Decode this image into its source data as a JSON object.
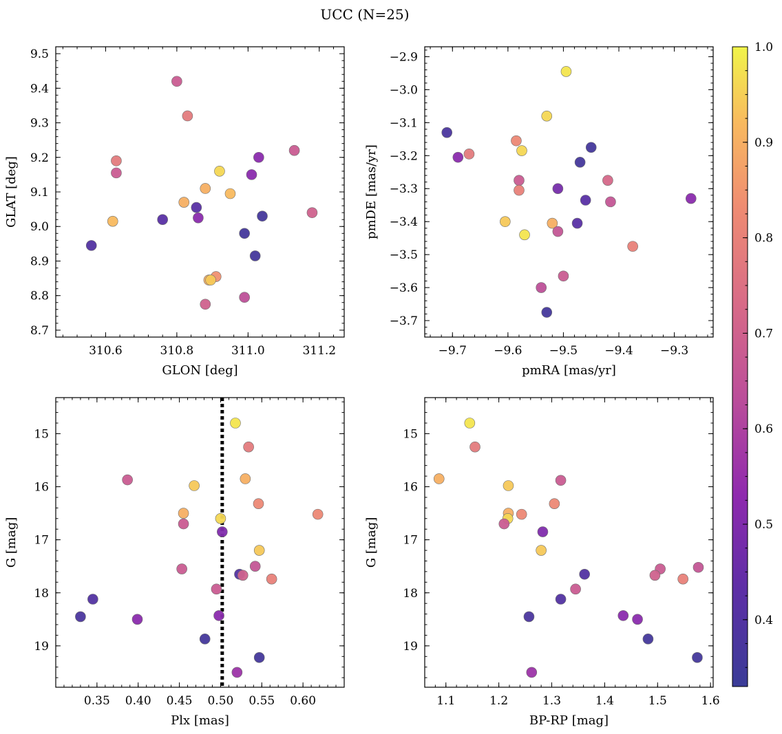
{
  "figure": {
    "suptitle": "UCC (N=25)"
  },
  "colorbar": {
    "colormap": "plasma",
    "range": [
      0.33,
      1.0
    ],
    "ticks": [
      "0.4",
      "0.5",
      "0.6",
      "0.7",
      "0.8",
      "0.9",
      "1.0"
    ]
  },
  "chart_data": [
    {
      "type": "scatter",
      "panel": "top-left",
      "xlabel": "GLON [deg]",
      "ylabel": "GLAT [deg]",
      "xlim": [
        310.46,
        311.27
      ],
      "ylim": [
        8.68,
        9.52
      ],
      "x_ticks": [
        "310.6",
        "310.8",
        "311.0",
        "311.2"
      ],
      "y_ticks": [
        "8.7",
        "8.8",
        "8.9",
        "9.0",
        "9.1",
        "9.2",
        "9.3",
        "9.4",
        "9.5"
      ],
      "points": [
        {
          "x": 310.8,
          "y": 9.42,
          "c": 0.68
        },
        {
          "x": 310.83,
          "y": 9.32,
          "c": 0.78
        },
        {
          "x": 310.63,
          "y": 9.19,
          "c": 0.78
        },
        {
          "x": 310.63,
          "y": 9.155,
          "c": 0.68
        },
        {
          "x": 310.92,
          "y": 9.16,
          "c": 0.96
        },
        {
          "x": 311.03,
          "y": 9.2,
          "c": 0.52
        },
        {
          "x": 311.13,
          "y": 9.22,
          "c": 0.68
        },
        {
          "x": 311.01,
          "y": 9.15,
          "c": 0.52
        },
        {
          "x": 310.88,
          "y": 9.11,
          "c": 0.9
        },
        {
          "x": 310.95,
          "y": 9.095,
          "c": 0.92
        },
        {
          "x": 310.82,
          "y": 9.07,
          "c": 0.9
        },
        {
          "x": 310.855,
          "y": 9.055,
          "c": 0.42
        },
        {
          "x": 311.18,
          "y": 9.04,
          "c": 0.7
        },
        {
          "x": 310.62,
          "y": 9.015,
          "c": 0.92
        },
        {
          "x": 310.76,
          "y": 9.02,
          "c": 0.42
        },
        {
          "x": 310.86,
          "y": 9.025,
          "c": 0.52
        },
        {
          "x": 311.04,
          "y": 9.03,
          "c": 0.36
        },
        {
          "x": 310.99,
          "y": 8.98,
          "c": 0.36
        },
        {
          "x": 310.56,
          "y": 8.945,
          "c": 0.4
        },
        {
          "x": 311.02,
          "y": 8.915,
          "c": 0.36
        },
        {
          "x": 310.91,
          "y": 8.855,
          "c": 0.84
        },
        {
          "x": 310.89,
          "y": 8.845,
          "c": 0.9
        },
        {
          "x": 310.895,
          "y": 8.845,
          "c": 0.94
        },
        {
          "x": 310.88,
          "y": 8.775,
          "c": 0.7
        },
        {
          "x": 310.99,
          "y": 8.795,
          "c": 0.64
        }
      ]
    },
    {
      "type": "scatter",
      "panel": "top-right",
      "xlabel": "pmRA [mas/yr]",
      "ylabel": "pmDE [mas/yr]",
      "xlim": [
        -9.75,
        -9.23
      ],
      "ylim": [
        -3.75,
        -2.87
      ],
      "x_ticks": [
        "−9.7",
        "−9.6",
        "−9.5",
        "−9.4",
        "−9.3"
      ],
      "y_ticks": [
        "−2.9",
        "−3.0",
        "−3.1",
        "−3.2",
        "−3.3",
        "−3.4",
        "−3.5",
        "−3.6",
        "−3.7"
      ],
      "points": [
        {
          "x": -9.495,
          "y": -2.945,
          "c": 0.98
        },
        {
          "x": -9.53,
          "y": -3.08,
          "c": 0.96
        },
        {
          "x": -9.71,
          "y": -3.13,
          "c": 0.38
        },
        {
          "x": -9.585,
          "y": -3.155,
          "c": 0.82
        },
        {
          "x": -9.575,
          "y": -3.185,
          "c": 0.96
        },
        {
          "x": -9.45,
          "y": -3.175,
          "c": 0.36
        },
        {
          "x": -9.67,
          "y": -3.195,
          "c": 0.78
        },
        {
          "x": -9.69,
          "y": -3.205,
          "c": 0.52
        },
        {
          "x": -9.47,
          "y": -3.22,
          "c": 0.36
        },
        {
          "x": -9.58,
          "y": -3.275,
          "c": 0.68
        },
        {
          "x": -9.42,
          "y": -3.275,
          "c": 0.72
        },
        {
          "x": -9.51,
          "y": -3.3,
          "c": 0.48
        },
        {
          "x": -9.58,
          "y": -3.305,
          "c": 0.8
        },
        {
          "x": -9.46,
          "y": -3.335,
          "c": 0.42
        },
        {
          "x": -9.415,
          "y": -3.34,
          "c": 0.66
        },
        {
          "x": -9.27,
          "y": -3.33,
          "c": 0.52
        },
        {
          "x": -9.605,
          "y": -3.4,
          "c": 0.94
        },
        {
          "x": -9.52,
          "y": -3.405,
          "c": 0.9
        },
        {
          "x": -9.475,
          "y": -3.405,
          "c": 0.42
        },
        {
          "x": -9.51,
          "y": -3.43,
          "c": 0.66
        },
        {
          "x": -9.57,
          "y": -3.44,
          "c": 0.98
        },
        {
          "x": -9.375,
          "y": -3.475,
          "c": 0.8
        },
        {
          "x": -9.5,
          "y": -3.565,
          "c": 0.68
        },
        {
          "x": -9.54,
          "y": -3.6,
          "c": 0.64
        },
        {
          "x": -9.53,
          "y": -3.675,
          "c": 0.36
        }
      ]
    },
    {
      "type": "scatter",
      "panel": "bottom-left",
      "xlabel": "Plx [mas]",
      "ylabel": "G [mag]",
      "xlim": [
        0.3,
        0.65
      ],
      "ylim": [
        19.78,
        14.32
      ],
      "y_inverted": true,
      "x_ticks": [
        "0.35",
        "0.40",
        "0.45",
        "0.50",
        "0.55",
        "0.60"
      ],
      "y_ticks": [
        "15",
        "16",
        "17",
        "18",
        "19"
      ],
      "vline": {
        "x": 0.502,
        "style": "dotted",
        "color": "#000000"
      },
      "points": [
        {
          "x": 0.518,
          "y": 14.8,
          "c": 0.98
        },
        {
          "x": 0.534,
          "y": 15.25,
          "c": 0.78
        },
        {
          "x": 0.387,
          "y": 15.87,
          "c": 0.68
        },
        {
          "x": 0.53,
          "y": 15.85,
          "c": 0.9
        },
        {
          "x": 0.468,
          "y": 15.98,
          "c": 0.94
        },
        {
          "x": 0.546,
          "y": 16.32,
          "c": 0.82
        },
        {
          "x": 0.455,
          "y": 16.5,
          "c": 0.9
        },
        {
          "x": 0.618,
          "y": 16.52,
          "c": 0.82
        },
        {
          "x": 0.5,
          "y": 16.6,
          "c": 0.96
        },
        {
          "x": 0.455,
          "y": 16.7,
          "c": 0.68
        },
        {
          "x": 0.502,
          "y": 16.85,
          "c": 0.5
        },
        {
          "x": 0.547,
          "y": 17.2,
          "c": 0.94
        },
        {
          "x": 0.453,
          "y": 17.55,
          "c": 0.68
        },
        {
          "x": 0.542,
          "y": 17.5,
          "c": 0.66
        },
        {
          "x": 0.523,
          "y": 17.65,
          "c": 0.4
        },
        {
          "x": 0.527,
          "y": 17.67,
          "c": 0.7
        },
        {
          "x": 0.562,
          "y": 17.74,
          "c": 0.8
        },
        {
          "x": 0.495,
          "y": 17.93,
          "c": 0.68
        },
        {
          "x": 0.345,
          "y": 18.12,
          "c": 0.4
        },
        {
          "x": 0.498,
          "y": 18.43,
          "c": 0.52
        },
        {
          "x": 0.33,
          "y": 18.45,
          "c": 0.38
        },
        {
          "x": 0.399,
          "y": 18.5,
          "c": 0.52
        },
        {
          "x": 0.481,
          "y": 18.87,
          "c": 0.36
        },
        {
          "x": 0.547,
          "y": 19.22,
          "c": 0.36
        },
        {
          "x": 0.52,
          "y": 19.5,
          "c": 0.56
        }
      ]
    },
    {
      "type": "scatter",
      "panel": "bottom-right",
      "xlabel": "BP-RP [mag]",
      "ylabel": "G [mag]",
      "xlim": [
        1.06,
        1.605
      ],
      "ylim": [
        19.78,
        14.32
      ],
      "y_inverted": true,
      "x_ticks": [
        "1.1",
        "1.2",
        "1.3",
        "1.4",
        "1.5",
        "1.6"
      ],
      "y_ticks": [
        "15",
        "16",
        "17",
        "18",
        "19"
      ],
      "points": [
        {
          "x": 1.145,
          "y": 14.8,
          "c": 0.98
        },
        {
          "x": 1.155,
          "y": 15.25,
          "c": 0.78
        },
        {
          "x": 1.087,
          "y": 15.85,
          "c": 0.9
        },
        {
          "x": 1.317,
          "y": 15.88,
          "c": 0.68
        },
        {
          "x": 1.218,
          "y": 15.98,
          "c": 0.94
        },
        {
          "x": 1.305,
          "y": 16.32,
          "c": 0.82
        },
        {
          "x": 1.218,
          "y": 16.5,
          "c": 0.9
        },
        {
          "x": 1.243,
          "y": 16.52,
          "c": 0.82
        },
        {
          "x": 1.217,
          "y": 16.6,
          "c": 0.96
        },
        {
          "x": 1.21,
          "y": 16.7,
          "c": 0.68
        },
        {
          "x": 1.283,
          "y": 16.85,
          "c": 0.5
        },
        {
          "x": 1.28,
          "y": 17.2,
          "c": 0.94
        },
        {
          "x": 1.577,
          "y": 17.52,
          "c": 0.66
        },
        {
          "x": 1.505,
          "y": 17.55,
          "c": 0.68
        },
        {
          "x": 1.362,
          "y": 17.65,
          "c": 0.4
        },
        {
          "x": 1.495,
          "y": 17.67,
          "c": 0.7
        },
        {
          "x": 1.548,
          "y": 17.74,
          "c": 0.8
        },
        {
          "x": 1.345,
          "y": 17.93,
          "c": 0.68
        },
        {
          "x": 1.317,
          "y": 18.12,
          "c": 0.4
        },
        {
          "x": 1.435,
          "y": 18.43,
          "c": 0.52
        },
        {
          "x": 1.257,
          "y": 18.45,
          "c": 0.38
        },
        {
          "x": 1.462,
          "y": 18.5,
          "c": 0.52
        },
        {
          "x": 1.482,
          "y": 18.87,
          "c": 0.36
        },
        {
          "x": 1.575,
          "y": 19.22,
          "c": 0.36
        },
        {
          "x": 1.262,
          "y": 19.5,
          "c": 0.56
        }
      ]
    }
  ]
}
